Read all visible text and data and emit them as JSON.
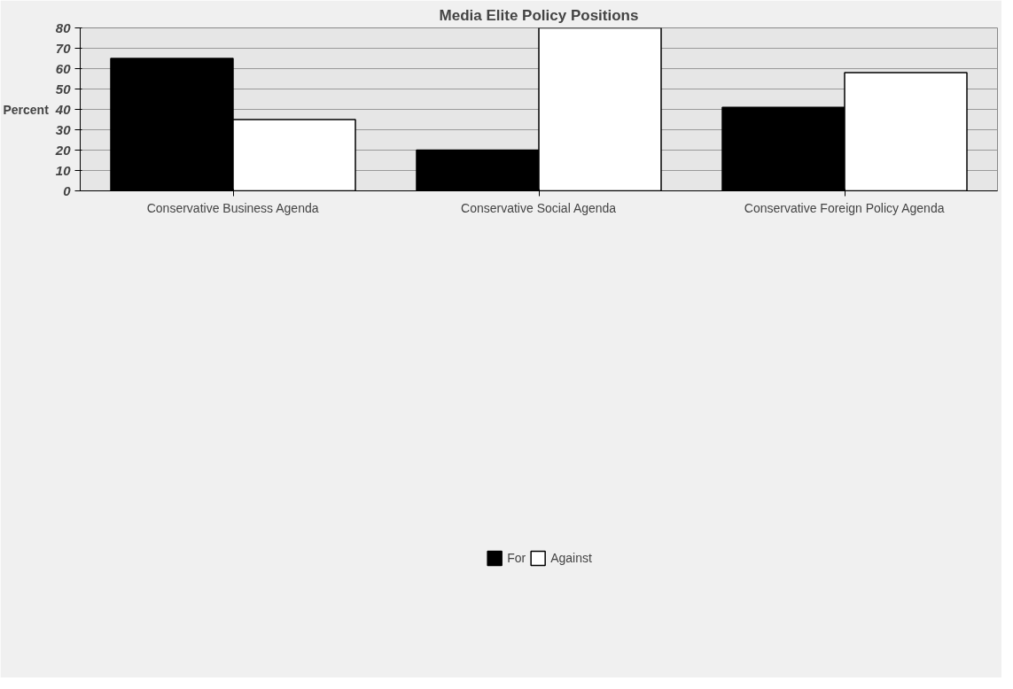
{
  "chart_data": {
    "type": "bar",
    "title": "Media Elite Policy Positions",
    "ylabel": "Percent",
    "categories": [
      "Conservative Business Agenda",
      "Conservative Social Agenda",
      "Conservative Foreign Policy Agenda"
    ],
    "series": [
      {
        "name": "For",
        "color": "#000000",
        "values": [
          65,
          20,
          41
        ]
      },
      {
        "name": "Against",
        "color": "#ffffff",
        "values": [
          35,
          80,
          58
        ]
      }
    ],
    "ylim": [
      0,
      80
    ],
    "yticks": [
      0,
      10,
      20,
      30,
      40,
      50,
      60,
      70,
      80
    ],
    "grid": "y",
    "legend": "bottom"
  }
}
